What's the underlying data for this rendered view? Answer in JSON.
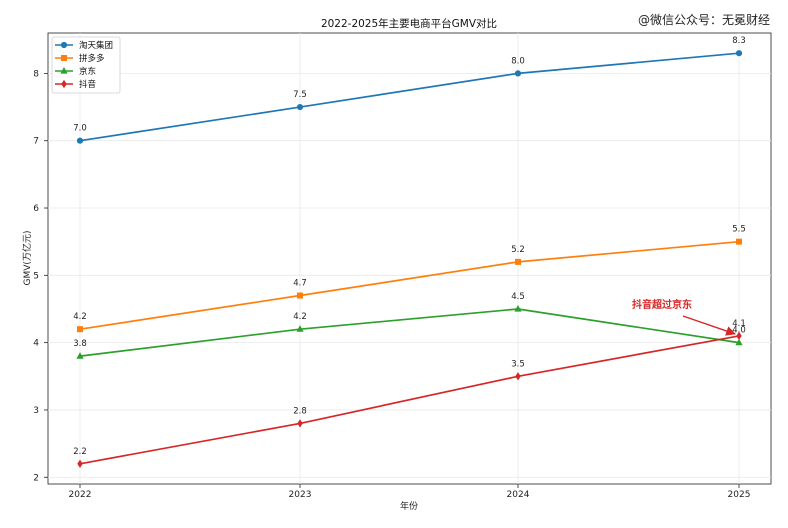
{
  "watermark": "@微信公众号：无冕财经",
  "chart_data": {
    "type": "line",
    "title": "2022-2025年主要电商平台GMV对比",
    "xlabel": "年份",
    "ylabel": "GMV(万亿元)",
    "x": [
      2022,
      2023,
      2024,
      2025
    ],
    "x_tick_labels": [
      "2022",
      "2023",
      "2024",
      "2025"
    ],
    "ylim": [
      1.9,
      8.6
    ],
    "y_ticks": [
      2,
      3,
      4,
      5,
      6,
      7,
      8
    ],
    "y_tick_labels": [
      "2",
      "3",
      "4",
      "5",
      "6",
      "7",
      "8"
    ],
    "grid": true,
    "legend_position": "top-left",
    "series": [
      {
        "name": "淘天集团",
        "values": [
          7.0,
          7.5,
          8.0,
          8.3
        ],
        "labels": [
          "7.0",
          "7.5",
          "8.0",
          "8.3"
        ],
        "color": "#1f77b4",
        "marker": "circle"
      },
      {
        "name": "拼多多",
        "values": [
          4.2,
          4.7,
          5.2,
          5.5
        ],
        "labels": [
          "4.2",
          "4.7",
          "5.2",
          "5.5"
        ],
        "color": "#ff7f0e",
        "marker": "square"
      },
      {
        "name": "京东",
        "values": [
          3.8,
          4.2,
          4.5,
          4.0
        ],
        "labels": [
          "3.8",
          "4.2",
          "4.5",
          "4.0"
        ],
        "color": "#2ca02c",
        "marker": "triangle"
      },
      {
        "name": "抖音",
        "values": [
          2.2,
          2.8,
          3.5,
          4.1
        ],
        "labels": [
          "2.2",
          "2.8",
          "3.5",
          "4.1"
        ],
        "color": "#d62728",
        "marker": "diamond"
      }
    ],
    "annotation": {
      "text": "抖音超过京东",
      "target_x": 2025,
      "target_y": 4.1,
      "color": "#d62728"
    }
  }
}
